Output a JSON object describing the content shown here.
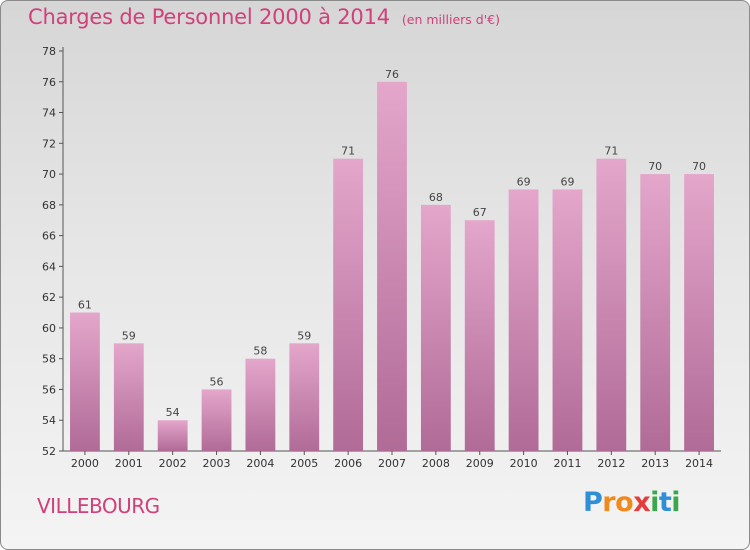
{
  "chart_data": {
    "type": "bar",
    "title": "Charges de Personnel 2000 à 2014",
    "subtitle": "(en milliers d'€)",
    "xlabel": "",
    "ylabel": "",
    "categories": [
      "2000",
      "2001",
      "2002",
      "2003",
      "2004",
      "2005",
      "2006",
      "2007",
      "2008",
      "2009",
      "2010",
      "2011",
      "2012",
      "2013",
      "2014"
    ],
    "values": [
      61,
      59,
      54,
      56,
      58,
      59,
      71,
      76,
      68,
      67,
      69,
      69,
      71,
      70,
      70
    ],
    "ylim": [
      52,
      78
    ],
    "yticks": [
      52,
      54,
      56,
      58,
      60,
      62,
      64,
      66,
      68,
      70,
      72,
      74,
      76,
      78
    ],
    "grid": false,
    "legend": "none",
    "bar_color_top": "#e4a6cb",
    "bar_color_bottom": "#b06b97"
  },
  "footer": {
    "place": "VILLEBOURG",
    "logo_letters": [
      "P",
      "r",
      "o",
      "x",
      "i",
      "t",
      "i"
    ]
  }
}
